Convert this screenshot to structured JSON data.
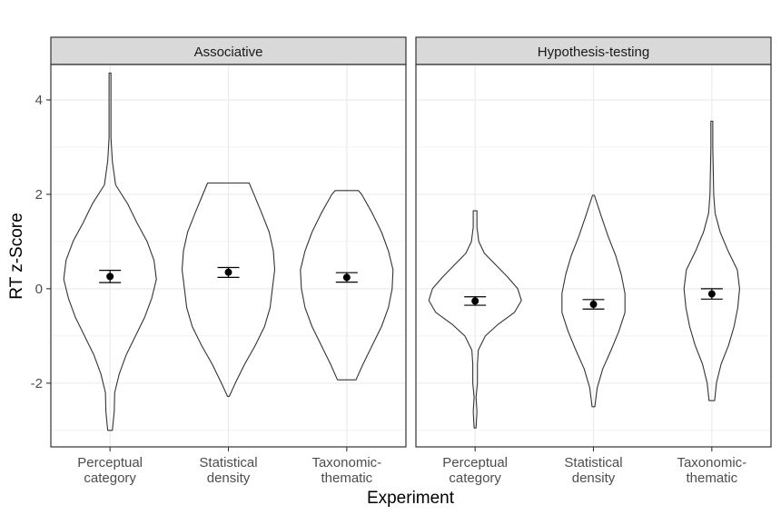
{
  "chart_data": {
    "type": "violin",
    "xlabel": "Experiment",
    "ylabel": "RT z-Score",
    "ylim": [
      -3.35,
      4.75
    ],
    "yticks": [
      "-2",
      "0",
      "2",
      "4"
    ],
    "categories": [
      {
        "lines": [
          "Perceptual",
          "category"
        ]
      },
      {
        "lines": [
          "Statistical",
          "density"
        ]
      },
      {
        "lines": [
          "Taxonomic-",
          "thematic"
        ]
      }
    ],
    "panels": [
      {
        "label": "Associative",
        "violins": [
          {
            "category": 0,
            "mean": 0.26,
            "se_low": 0.13,
            "se_high": 0.39,
            "ymin": -3.0,
            "ymax": 4.57,
            "profile": [
              [
                -3.0,
                0.05
              ],
              [
                -2.6,
                0.09
              ],
              [
                -2.2,
                0.1
              ],
              [
                -1.8,
                0.2
              ],
              [
                -1.4,
                0.35
              ],
              [
                -1.0,
                0.55
              ],
              [
                -0.6,
                0.75
              ],
              [
                -0.2,
                0.9
              ],
              [
                0.2,
                1.0
              ],
              [
                0.6,
                0.95
              ],
              [
                1.0,
                0.8
              ],
              [
                1.4,
                0.58
              ],
              [
                1.8,
                0.38
              ],
              [
                2.2,
                0.12
              ],
              [
                2.7,
                0.05
              ],
              [
                3.2,
                0.02
              ],
              [
                3.8,
                0.02
              ],
              [
                4.57,
                0.02
              ]
            ]
          },
          {
            "category": 1,
            "mean": 0.35,
            "se_low": 0.24,
            "se_high": 0.45,
            "ymin": -2.28,
            "ymax": 2.24,
            "profile": [
              [
                -2.28,
                0.02
              ],
              [
                -2.0,
                0.15
              ],
              [
                -1.6,
                0.35
              ],
              [
                -1.2,
                0.58
              ],
              [
                -0.8,
                0.78
              ],
              [
                -0.4,
                0.9
              ],
              [
                0.0,
                0.95
              ],
              [
                0.4,
                1.0
              ],
              [
                0.8,
                0.97
              ],
              [
                1.2,
                0.88
              ],
              [
                1.6,
                0.72
              ],
              [
                2.0,
                0.55
              ],
              [
                2.24,
                0.45
              ]
            ]
          },
          {
            "category": 2,
            "mean": 0.24,
            "se_low": 0.14,
            "se_high": 0.34,
            "ymin": -1.93,
            "ymax": 2.08,
            "profile": [
              [
                -1.93,
                0.2
              ],
              [
                -1.6,
                0.35
              ],
              [
                -1.2,
                0.55
              ],
              [
                -0.8,
                0.75
              ],
              [
                -0.4,
                0.9
              ],
              [
                0.0,
                0.98
              ],
              [
                0.4,
                1.0
              ],
              [
                0.8,
                0.9
              ],
              [
                1.2,
                0.75
              ],
              [
                1.6,
                0.55
              ],
              [
                2.0,
                0.32
              ],
              [
                2.08,
                0.25
              ]
            ]
          }
        ]
      },
      {
        "label": "Hypothesis-testing",
        "violins": [
          {
            "category": 0,
            "mean": -0.26,
            "se_low": -0.35,
            "se_high": -0.17,
            "ymin": -2.95,
            "ymax": 1.65,
            "profile": [
              [
                -2.95,
                0.02
              ],
              [
                -2.6,
                0.04
              ],
              [
                -2.3,
                0.02
              ],
              [
                -2.0,
                0.05
              ],
              [
                -1.6,
                0.05
              ],
              [
                -1.3,
                0.07
              ],
              [
                -1.0,
                0.22
              ],
              [
                -0.75,
                0.5
              ],
              [
                -0.5,
                0.85
              ],
              [
                -0.25,
                1.0
              ],
              [
                0.0,
                0.92
              ],
              [
                0.25,
                0.7
              ],
              [
                0.5,
                0.45
              ],
              [
                0.75,
                0.2
              ],
              [
                1.0,
                0.08
              ],
              [
                1.3,
                0.04
              ],
              [
                1.65,
                0.04
              ]
            ]
          },
          {
            "category": 1,
            "mean": -0.33,
            "se_low": -0.43,
            "se_high": -0.23,
            "ymin": -2.5,
            "ymax": 1.98,
            "profile": [
              [
                -2.5,
                0.03
              ],
              [
                -2.1,
                0.08
              ],
              [
                -1.7,
                0.2
              ],
              [
                -1.3,
                0.38
              ],
              [
                -0.9,
                0.55
              ],
              [
                -0.5,
                0.68
              ],
              [
                -0.1,
                0.68
              ],
              [
                0.3,
                0.6
              ],
              [
                0.7,
                0.48
              ],
              [
                1.1,
                0.32
              ],
              [
                1.5,
                0.18
              ],
              [
                1.98,
                0.02
              ]
            ]
          },
          {
            "category": 2,
            "mean": -0.11,
            "se_low": -0.22,
            "se_high": 0.0,
            "ymin": -2.37,
            "ymax": 3.55,
            "profile": [
              [
                -2.37,
                0.06
              ],
              [
                -2.0,
                0.1
              ],
              [
                -1.6,
                0.2
              ],
              [
                -1.2,
                0.36
              ],
              [
                -0.8,
                0.48
              ],
              [
                -0.4,
                0.56
              ],
              [
                0.0,
                0.6
              ],
              [
                0.4,
                0.55
              ],
              [
                0.8,
                0.35
              ],
              [
                1.2,
                0.18
              ],
              [
                1.6,
                0.07
              ],
              [
                2.0,
                0.04
              ],
              [
                2.5,
                0.03
              ],
              [
                3.0,
                0.02
              ],
              [
                3.55,
                0.02
              ]
            ]
          }
        ]
      }
    ]
  }
}
